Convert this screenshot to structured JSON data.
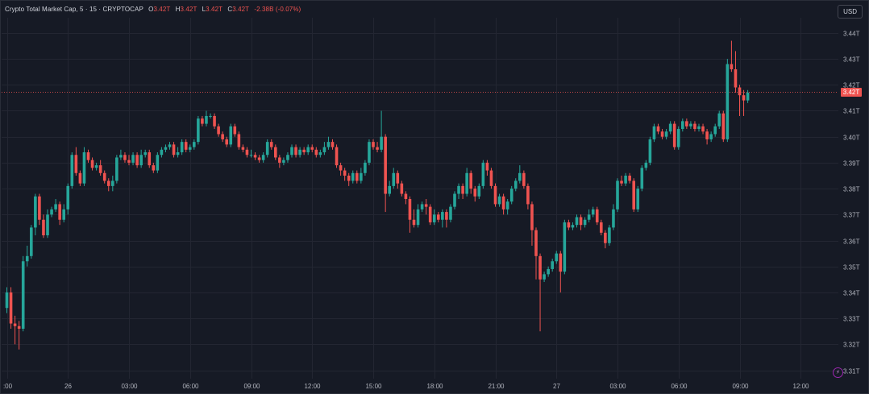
{
  "legend": {
    "symbol": "Crypto Total Market Cap, 5 · 15 · CRYPTOCAP",
    "o_label": "O",
    "o_value": "3.42T",
    "h_label": "H",
    "h_value": "3.42T",
    "l_label": "L",
    "l_value": "3.42T",
    "c_label": "C",
    "c_value": "3.42T",
    "change": "-2.38B (-0.07%)"
  },
  "currency_button": "USD",
  "last_price_label": "3.42T",
  "colors": {
    "background": "#161a25",
    "grid": "#232632",
    "up": "#26a69a",
    "down": "#ef5350",
    "axis_text": "#b2b5be",
    "price_line": "#ef5350"
  },
  "chart_data": {
    "type": "candlestick",
    "unit": "T USD",
    "grid": true,
    "ylim": [
      3.305,
      3.445
    ],
    "y_ticks": [
      "3.44T",
      "3.43T",
      "3.42T",
      "3.41T",
      "3.40T",
      "3.39T",
      "3.38T",
      "3.37T",
      "3.36T",
      "3.35T",
      "3.34T",
      "3.33T",
      "3.32T",
      "3.31T"
    ],
    "y_tick_values": [
      3.44,
      3.43,
      3.42,
      3.41,
      3.4,
      3.39,
      3.38,
      3.37,
      3.36,
      3.35,
      3.34,
      3.33,
      3.32,
      3.31
    ],
    "x_ticks": [
      ":00",
      "26",
      "03:00",
      "06:00",
      "09:00",
      "12:00",
      "15:00",
      "18:00",
      "21:00",
      "27",
      "03:00",
      "06:00",
      "09:00",
      "12:00"
    ],
    "x_tick_index": [
      0,
      15,
      30,
      45,
      60,
      75,
      90,
      105,
      120,
      135,
      150,
      165,
      180,
      195
    ],
    "last_price": 3.4172,
    "candles": [
      [
        3.334,
        3.34,
        3.342,
        3.332
      ],
      [
        3.34,
        3.328,
        3.342,
        3.326
      ],
      [
        3.328,
        3.327,
        3.331,
        3.32
      ],
      [
        3.327,
        3.326,
        3.329,
        3.318
      ],
      [
        3.326,
        3.352,
        3.354,
        3.325
      ],
      [
        3.352,
        3.354,
        3.358,
        3.35
      ],
      [
        3.354,
        3.365,
        3.366,
        3.353
      ],
      [
        3.365,
        3.377,
        3.378,
        3.362
      ],
      [
        3.377,
        3.368,
        3.378,
        3.366
      ],
      [
        3.368,
        3.362,
        3.37,
        3.361
      ],
      [
        3.362,
        3.37,
        3.372,
        3.361
      ],
      [
        3.37,
        3.372,
        3.373,
        3.369
      ],
      [
        3.372,
        3.374,
        3.376,
        3.371
      ],
      [
        3.374,
        3.368,
        3.375,
        3.366
      ],
      [
        3.368,
        3.372,
        3.374,
        3.367
      ],
      [
        3.372,
        3.381,
        3.382,
        3.37
      ],
      [
        3.381,
        3.393,
        3.394,
        3.38
      ],
      [
        3.393,
        3.386,
        3.396,
        3.385
      ],
      [
        3.386,
        3.382,
        3.387,
        3.381
      ],
      [
        3.382,
        3.394,
        3.396,
        3.381
      ],
      [
        3.394,
        3.391,
        3.395,
        3.39
      ],
      [
        3.391,
        3.388,
        3.392,
        3.387
      ],
      [
        3.388,
        3.389,
        3.39,
        3.387
      ],
      [
        3.389,
        3.386,
        3.391,
        3.385
      ],
      [
        3.386,
        3.383,
        3.387,
        3.382
      ],
      [
        3.383,
        3.381,
        3.384,
        3.379
      ],
      [
        3.381,
        3.383,
        3.385,
        3.379
      ],
      [
        3.383,
        3.392,
        3.393,
        3.382
      ],
      [
        3.392,
        3.393,
        3.395,
        3.391
      ],
      [
        3.393,
        3.391,
        3.394,
        3.39
      ],
      [
        3.391,
        3.39,
        3.393,
        3.389
      ],
      [
        3.39,
        3.393,
        3.394,
        3.389
      ],
      [
        3.393,
        3.389,
        3.394,
        3.388
      ],
      [
        3.389,
        3.393,
        3.395,
        3.388
      ],
      [
        3.393,
        3.394,
        3.395,
        3.392
      ],
      [
        3.394,
        3.389,
        3.395,
        3.388
      ],
      [
        3.389,
        3.387,
        3.39,
        3.386
      ],
      [
        3.387,
        3.393,
        3.394,
        3.386
      ],
      [
        3.393,
        3.395,
        3.396,
        3.392
      ],
      [
        3.395,
        3.396,
        3.397,
        3.394
      ],
      [
        3.396,
        3.397,
        3.398,
        3.395
      ],
      [
        3.397,
        3.393,
        3.398,
        3.392
      ],
      [
        3.393,
        3.394,
        3.396,
        3.392
      ],
      [
        3.394,
        3.398,
        3.399,
        3.393
      ],
      [
        3.398,
        3.395,
        3.399,
        3.394
      ],
      [
        3.395,
        3.396,
        3.397,
        3.394
      ],
      [
        3.396,
        3.398,
        3.399,
        3.395
      ],
      [
        3.398,
        3.407,
        3.408,
        3.397
      ],
      [
        3.407,
        3.405,
        3.408,
        3.404
      ],
      [
        3.405,
        3.408,
        3.41,
        3.404
      ],
      [
        3.408,
        3.408,
        3.409,
        3.407
      ],
      [
        3.408,
        3.404,
        3.409,
        3.403
      ],
      [
        3.404,
        3.401,
        3.405,
        3.4
      ],
      [
        3.401,
        3.399,
        3.402,
        3.398
      ],
      [
        3.399,
        3.397,
        3.4,
        3.396
      ],
      [
        3.397,
        3.404,
        3.405,
        3.396
      ],
      [
        3.404,
        3.401,
        3.405,
        3.4
      ],
      [
        3.401,
        3.396,
        3.402,
        3.395
      ],
      [
        3.396,
        3.395,
        3.397,
        3.394
      ],
      [
        3.395,
        3.393,
        3.396,
        3.392
      ],
      [
        3.393,
        3.393,
        3.395,
        3.392
      ],
      [
        3.393,
        3.392,
        3.394,
        3.391
      ],
      [
        3.392,
        3.391,
        3.393,
        3.39
      ],
      [
        3.391,
        3.393,
        3.394,
        3.39
      ],
      [
        3.393,
        3.398,
        3.399,
        3.392
      ],
      [
        3.398,
        3.396,
        3.399,
        3.395
      ],
      [
        3.396,
        3.392,
        3.397,
        3.391
      ],
      [
        3.392,
        3.39,
        3.393,
        3.388
      ],
      [
        3.39,
        3.391,
        3.392,
        3.389
      ],
      [
        3.391,
        3.393,
        3.394,
        3.39
      ],
      [
        3.393,
        3.396,
        3.397,
        3.392
      ],
      [
        3.396,
        3.393,
        3.397,
        3.392
      ],
      [
        3.393,
        3.395,
        3.396,
        3.392
      ],
      [
        3.395,
        3.394,
        3.396,
        3.393
      ],
      [
        3.394,
        3.396,
        3.397,
        3.393
      ],
      [
        3.396,
        3.395,
        3.397,
        3.394
      ],
      [
        3.395,
        3.393,
        3.396,
        3.392
      ],
      [
        3.393,
        3.394,
        3.395,
        3.392
      ],
      [
        3.394,
        3.396,
        3.398,
        3.393
      ],
      [
        3.396,
        3.398,
        3.4,
        3.395
      ],
      [
        3.398,
        3.396,
        3.399,
        3.395
      ],
      [
        3.396,
        3.389,
        3.397,
        3.388
      ],
      [
        3.389,
        3.387,
        3.39,
        3.385
      ],
      [
        3.387,
        3.385,
        3.388,
        3.383
      ],
      [
        3.385,
        3.383,
        3.386,
        3.381
      ],
      [
        3.383,
        3.386,
        3.387,
        3.382
      ],
      [
        3.386,
        3.383,
        3.387,
        3.382
      ],
      [
        3.383,
        3.386,
        3.388,
        3.382
      ],
      [
        3.386,
        3.39,
        3.391,
        3.385
      ],
      [
        3.39,
        3.398,
        3.399,
        3.389
      ],
      [
        3.398,
        3.396,
        3.399,
        3.395
      ],
      [
        3.396,
        3.395,
        3.398,
        3.394
      ],
      [
        3.395,
        3.4,
        3.41,
        3.394
      ],
      [
        3.4,
        3.378,
        3.401,
        3.371
      ],
      [
        3.378,
        3.381,
        3.383,
        3.377
      ],
      [
        3.381,
        3.386,
        3.388,
        3.38
      ],
      [
        3.386,
        3.382,
        3.387,
        3.38
      ],
      [
        3.382,
        3.378,
        3.383,
        3.377
      ],
      [
        3.378,
        3.376,
        3.379,
        3.374
      ],
      [
        3.376,
        3.368,
        3.377,
        3.363
      ],
      [
        3.368,
        3.366,
        3.372,
        3.365
      ],
      [
        3.366,
        3.372,
        3.374,
        3.365
      ],
      [
        3.372,
        3.374,
        3.375,
        3.371
      ],
      [
        3.374,
        3.373,
        3.376,
        3.37
      ],
      [
        3.373,
        3.367,
        3.374,
        3.366
      ],
      [
        3.367,
        3.37,
        3.372,
        3.366
      ],
      [
        3.37,
        3.368,
        3.371,
        3.367
      ],
      [
        3.368,
        3.371,
        3.372,
        3.365
      ],
      [
        3.371,
        3.368,
        3.372,
        3.365
      ],
      [
        3.368,
        3.373,
        3.374,
        3.367
      ],
      [
        3.373,
        3.378,
        3.379,
        3.372
      ],
      [
        3.378,
        3.381,
        3.382,
        3.376
      ],
      [
        3.381,
        3.378,
        3.382,
        3.376
      ],
      [
        3.378,
        3.386,
        3.388,
        3.377
      ],
      [
        3.386,
        3.38,
        3.387,
        3.378
      ],
      [
        3.38,
        3.377,
        3.381,
        3.375
      ],
      [
        3.377,
        3.381,
        3.382,
        3.376
      ],
      [
        3.381,
        3.39,
        3.391,
        3.38
      ],
      [
        3.39,
        3.387,
        3.391,
        3.385
      ],
      [
        3.387,
        3.381,
        3.388,
        3.38
      ],
      [
        3.381,
        3.374,
        3.382,
        3.373
      ],
      [
        3.374,
        3.377,
        3.378,
        3.373
      ],
      [
        3.377,
        3.372,
        3.378,
        3.37
      ],
      [
        3.372,
        3.375,
        3.376,
        3.37
      ],
      [
        3.375,
        3.38,
        3.381,
        3.374
      ],
      [
        3.38,
        3.383,
        3.384,
        3.379
      ],
      [
        3.383,
        3.386,
        3.389,
        3.382
      ],
      [
        3.386,
        3.381,
        3.387,
        3.38
      ],
      [
        3.381,
        3.374,
        3.382,
        3.372
      ],
      [
        3.374,
        3.364,
        3.375,
        3.358
      ],
      [
        3.364,
        3.354,
        3.365,
        3.345
      ],
      [
        3.354,
        3.345,
        3.355,
        3.325
      ],
      [
        3.345,
        3.347,
        3.348,
        3.344
      ],
      [
        3.347,
        3.349,
        3.35,
        3.346
      ],
      [
        3.349,
        3.352,
        3.353,
        3.348
      ],
      [
        3.352,
        3.355,
        3.356,
        3.351
      ],
      [
        3.355,
        3.348,
        3.356,
        3.34
      ],
      [
        3.348,
        3.367,
        3.368,
        3.347
      ],
      [
        3.367,
        3.365,
        3.368,
        3.364
      ],
      [
        3.365,
        3.366,
        3.367,
        3.364
      ],
      [
        3.366,
        3.369,
        3.37,
        3.365
      ],
      [
        3.369,
        3.366,
        3.37,
        3.364
      ],
      [
        3.366,
        3.368,
        3.369,
        3.365
      ],
      [
        3.368,
        3.37,
        3.372,
        3.367
      ],
      [
        3.37,
        3.372,
        3.373,
        3.369
      ],
      [
        3.372,
        3.367,
        3.373,
        3.366
      ],
      [
        3.367,
        3.363,
        3.368,
        3.362
      ],
      [
        3.363,
        3.359,
        3.364,
        3.357
      ],
      [
        3.359,
        3.365,
        3.366,
        3.358
      ],
      [
        3.365,
        3.372,
        3.374,
        3.364
      ],
      [
        3.372,
        3.383,
        3.384,
        3.371
      ],
      [
        3.383,
        3.382,
        3.385,
        3.381
      ],
      [
        3.382,
        3.385,
        3.386,
        3.381
      ],
      [
        3.385,
        3.383,
        3.386,
        3.382
      ],
      [
        3.383,
        3.372,
        3.384,
        3.371
      ],
      [
        3.372,
        3.38,
        3.381,
        3.371
      ],
      [
        3.38,
        3.388,
        3.389,
        3.379
      ],
      [
        3.388,
        3.39,
        3.391,
        3.387
      ],
      [
        3.39,
        3.399,
        3.4,
        3.389
      ],
      [
        3.399,
        3.404,
        3.405,
        3.398
      ],
      [
        3.404,
        3.402,
        3.405,
        3.401
      ],
      [
        3.402,
        3.4,
        3.403,
        3.399
      ],
      [
        3.4,
        3.402,
        3.403,
        3.399
      ],
      [
        3.402,
        3.405,
        3.406,
        3.401
      ],
      [
        3.405,
        3.396,
        3.406,
        3.395
      ],
      [
        3.396,
        3.403,
        3.404,
        3.395
      ],
      [
        3.403,
        3.406,
        3.407,
        3.402
      ],
      [
        3.406,
        3.404,
        3.407,
        3.403
      ],
      [
        3.404,
        3.405,
        3.406,
        3.403
      ],
      [
        3.405,
        3.403,
        3.406,
        3.402
      ],
      [
        3.403,
        3.404,
        3.405,
        3.402
      ],
      [
        3.404,
        3.402,
        3.405,
        3.401
      ],
      [
        3.402,
        3.399,
        3.403,
        3.397
      ],
      [
        3.399,
        3.401,
        3.402,
        3.398
      ],
      [
        3.401,
        3.404,
        3.405,
        3.4
      ],
      [
        3.404,
        3.409,
        3.41,
        3.403
      ],
      [
        3.409,
        3.399,
        3.41,
        3.398
      ],
      [
        3.399,
        3.428,
        3.43,
        3.398
      ],
      [
        3.428,
        3.426,
        3.437,
        3.425
      ],
      [
        3.426,
        3.419,
        3.433,
        3.417
      ],
      [
        3.419,
        3.416,
        3.42,
        3.408
      ],
      [
        3.416,
        3.414,
        3.418,
        3.408
      ],
      [
        3.414,
        3.417,
        3.418,
        3.413
      ]
    ]
  }
}
